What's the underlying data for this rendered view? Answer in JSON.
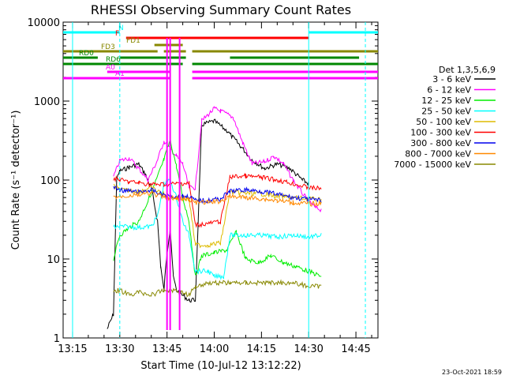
{
  "chart_data": {
    "type": "line",
    "title": "RHESSI Observing Summary Count Rates",
    "xlabel": "Start Time (10-Jul-12 13:12:22)",
    "ylabel": "Count Rate (s⁻¹ detector⁻¹)",
    "yscale": "log",
    "ylim": [
      1,
      10000
    ],
    "xlim_minutes_utc": [
      "13:12",
      "14:52"
    ],
    "xticks": [
      "13:15",
      "13:30",
      "13:45",
      "14:00",
      "14:15",
      "14:30",
      "14:45"
    ],
    "yticks": [
      "1",
      "10",
      "100",
      "1000",
      "10000"
    ],
    "legend_title": "Det 1,3,5,6,9",
    "legend_position": "right",
    "footer": "23-Oct-2021 18:59",
    "series": [
      {
        "name": "3 - 6 keV",
        "color": "#000000",
        "points": [
          [
            "13:26",
            1.3
          ],
          [
            "13:28",
            2
          ],
          [
            "13:29",
            100
          ],
          [
            "13:30",
            130
          ],
          [
            "13:33",
            145
          ],
          [
            "13:36",
            160
          ],
          [
            "13:38",
            120
          ],
          [
            "13:40",
            80
          ],
          [
            "13:42",
            30
          ],
          [
            "13:43",
            8
          ],
          [
            "13:44",
            4
          ],
          [
            "13:45",
            12
          ],
          [
            "13:46",
            25
          ],
          [
            "13:47",
            6
          ],
          [
            "13:48",
            4
          ],
          [
            "13:52",
            3
          ],
          [
            "13:54",
            3
          ],
          [
            "13:56",
            500
          ],
          [
            "14:00",
            560
          ],
          [
            "14:04",
            420
          ],
          [
            "14:08",
            280
          ],
          [
            "14:12",
            180
          ],
          [
            "14:16",
            140
          ],
          [
            "14:20",
            160
          ],
          [
            "14:24",
            140
          ],
          [
            "14:28",
            100
          ],
          [
            "14:30",
            90
          ]
        ]
      },
      {
        "name": "6 - 12 keV",
        "color": "#ff00ff",
        "points": [
          [
            "13:28",
            110
          ],
          [
            "13:30",
            175
          ],
          [
            "13:33",
            190
          ],
          [
            "13:36",
            140
          ],
          [
            "13:39",
            100
          ],
          [
            "13:42",
            180
          ],
          [
            "13:44",
            310
          ],
          [
            "13:46",
            250
          ],
          [
            "13:48",
            200
          ],
          [
            "13:50",
            160
          ],
          [
            "13:52",
            80
          ],
          [
            "13:54",
            80
          ],
          [
            "13:56",
            560
          ],
          [
            "14:00",
            800
          ],
          [
            "14:02",
            750
          ],
          [
            "14:06",
            620
          ],
          [
            "14:09",
            300
          ],
          [
            "14:12",
            160
          ],
          [
            "14:16",
            170
          ],
          [
            "14:19",
            200
          ],
          [
            "14:22",
            160
          ],
          [
            "14:25",
            100
          ],
          [
            "14:29",
            60
          ],
          [
            "14:32",
            45
          ],
          [
            "14:34",
            42
          ]
        ]
      },
      {
        "name": "12 - 25 keV",
        "color": "#00ee00",
        "points": [
          [
            "13:28",
            10
          ],
          [
            "13:30",
            20
          ],
          [
            "13:33",
            25
          ],
          [
            "13:36",
            30
          ],
          [
            "13:39",
            55
          ],
          [
            "13:42",
            110
          ],
          [
            "13:44",
            180
          ],
          [
            "13:46",
            320
          ],
          [
            "13:48",
            150
          ],
          [
            "13:50",
            60
          ],
          [
            "13:52",
            30
          ],
          [
            "13:54",
            6
          ],
          [
            "13:56",
            11
          ],
          [
            "14:00",
            12
          ],
          [
            "14:04",
            13
          ],
          [
            "14:07",
            22
          ],
          [
            "14:10",
            10
          ],
          [
            "14:14",
            9
          ],
          [
            "14:18",
            11
          ],
          [
            "14:22",
            9
          ],
          [
            "14:26",
            8
          ],
          [
            "14:30",
            7
          ],
          [
            "14:34",
            6
          ]
        ]
      },
      {
        "name": "25 - 50 keV",
        "color": "#00ffff",
        "points": [
          [
            "13:28",
            25
          ],
          [
            "13:30",
            26
          ],
          [
            "13:36",
            25
          ],
          [
            "13:40",
            26
          ],
          [
            "13:42",
            35
          ],
          [
            "13:44",
            90
          ],
          [
            "13:46",
            100
          ],
          [
            "13:48",
            60
          ],
          [
            "13:50",
            30
          ],
          [
            "13:52",
            20
          ],
          [
            "13:54",
            7
          ],
          [
            "13:58",
            7
          ],
          [
            "14:00",
            6
          ],
          [
            "14:03",
            6
          ],
          [
            "14:05",
            20
          ],
          [
            "14:10",
            20
          ],
          [
            "14:15",
            20
          ],
          [
            "14:20",
            19
          ],
          [
            "14:25",
            20
          ],
          [
            "14:30",
            19
          ],
          [
            "14:34",
            20
          ]
        ]
      },
      {
        "name": "50 - 100 keV",
        "color": "#ddbb00",
        "points": [
          [
            "13:28",
            85
          ],
          [
            "13:30",
            75
          ],
          [
            "13:36",
            72
          ],
          [
            "13:40",
            80
          ],
          [
            "13:42",
            72
          ],
          [
            "13:46",
            60
          ],
          [
            "13:50",
            58
          ],
          [
            "13:52",
            58
          ],
          [
            "13:54",
            15
          ],
          [
            "13:58",
            15
          ],
          [
            "14:02",
            16
          ],
          [
            "14:05",
            70
          ],
          [
            "14:10",
            68
          ],
          [
            "14:15",
            67
          ],
          [
            "14:20",
            62
          ],
          [
            "14:25",
            60
          ],
          [
            "14:30",
            58
          ],
          [
            "14:34",
            56
          ]
        ]
      },
      {
        "name": "100 - 300 keV",
        "color": "#ff0000",
        "points": [
          [
            "13:28",
            105
          ],
          [
            "13:30",
            100
          ],
          [
            "13:33",
            95
          ],
          [
            "13:36",
            92
          ],
          [
            "13:40",
            88
          ],
          [
            "13:44",
            88
          ],
          [
            "13:48",
            90
          ],
          [
            "13:52",
            92
          ],
          [
            "13:54",
            27
          ],
          [
            "13:58",
            28
          ],
          [
            "14:02",
            30
          ],
          [
            "14:05",
            110
          ],
          [
            "14:10",
            112
          ],
          [
            "14:15",
            108
          ],
          [
            "14:20",
            100
          ],
          [
            "14:25",
            90
          ],
          [
            "14:30",
            80
          ],
          [
            "14:34",
            78
          ]
        ]
      },
      {
        "name": "300 - 800 keV",
        "color": "#0000ee",
        "points": [
          [
            "13:28",
            82
          ],
          [
            "13:30",
            75
          ],
          [
            "13:33",
            72
          ],
          [
            "13:36",
            70
          ],
          [
            "13:40",
            75
          ],
          [
            "13:42",
            68
          ],
          [
            "13:46",
            62
          ],
          [
            "13:50",
            62
          ],
          [
            "13:52",
            62
          ],
          [
            "13:54",
            55
          ],
          [
            "13:58",
            55
          ],
          [
            "14:02",
            58
          ],
          [
            "14:05",
            72
          ],
          [
            "14:10",
            75
          ],
          [
            "14:15",
            72
          ],
          [
            "14:20",
            66
          ],
          [
            "14:25",
            60
          ],
          [
            "14:30",
            57
          ],
          [
            "14:34",
            55
          ]
        ]
      },
      {
        "name": "800 - 7000 keV",
        "color": "#ff8800",
        "points": [
          [
            "13:28",
            60
          ],
          [
            "13:30",
            62
          ],
          [
            "13:36",
            65
          ],
          [
            "13:40",
            68
          ],
          [
            "13:44",
            60
          ],
          [
            "13:48",
            58
          ],
          [
            "13:52",
            57
          ],
          [
            "13:54",
            52
          ],
          [
            "13:58",
            52
          ],
          [
            "14:02",
            54
          ],
          [
            "14:05",
            62
          ],
          [
            "14:10",
            60
          ],
          [
            "14:15",
            58
          ],
          [
            "14:20",
            55
          ],
          [
            "14:25",
            52
          ],
          [
            "14:30",
            50
          ],
          [
            "14:34",
            50
          ]
        ]
      },
      {
        "name": "7000 - 15000 keV",
        "color": "#888800",
        "points": [
          [
            "13:28",
            4
          ],
          [
            "13:30",
            4
          ],
          [
            "13:33",
            3.5
          ],
          [
            "13:36",
            3.8
          ],
          [
            "13:40",
            3.5
          ],
          [
            "13:44",
            4
          ],
          [
            "13:48",
            4
          ],
          [
            "13:52",
            3.5
          ],
          [
            "13:54",
            4.5
          ],
          [
            "13:58",
            5
          ],
          [
            "14:02",
            5
          ],
          [
            "14:05",
            5
          ],
          [
            "14:10",
            5
          ],
          [
            "14:15",
            5
          ],
          [
            "14:20",
            5
          ],
          [
            "14:25",
            5
          ],
          [
            "14:30",
            4.5
          ],
          [
            "14:34",
            4.5
          ]
        ]
      }
    ],
    "flag_bars": [
      {
        "label": "N",
        "color": "#00ffff",
        "segments": [
          [
            "13:12",
            "13:30"
          ],
          [
            "14:30",
            "14:52"
          ]
        ]
      },
      {
        "label": "F",
        "color": "#ff0000",
        "segments": [
          [
            "13:32",
            "14:30"
          ]
        ]
      },
      {
        "label": "FD1",
        "color": "#888800",
        "segments": [
          [
            "13:41",
            "13:50"
          ]
        ]
      },
      {
        "label": "FD3",
        "color": "#888800",
        "segments": [
          [
            "13:12",
            "13:42"
          ],
          [
            "13:44",
            "13:51"
          ],
          [
            "13:53",
            "14:52"
          ]
        ]
      },
      {
        "label": "RD0",
        "color": "#008800",
        "segments": [
          [
            "13:12",
            "13:23"
          ],
          [
            "13:30",
            "13:51"
          ],
          [
            "14:05",
            "14:46"
          ]
        ]
      },
      {
        "label": "RD6",
        "color": "#008800",
        "segments": [
          [
            "13:12",
            "13:50"
          ],
          [
            "13:53",
            "14:52"
          ]
        ]
      },
      {
        "label": "A0",
        "color": "#ff00ff",
        "segments": [
          [
            "13:26",
            "13:46"
          ],
          [
            "13:53",
            "14:52"
          ]
        ]
      },
      {
        "label": "A1",
        "color": "#ff00ff",
        "segments": [
          [
            "13:12",
            "13:46"
          ],
          [
            "13:53",
            "14:52"
          ]
        ]
      }
    ]
  }
}
